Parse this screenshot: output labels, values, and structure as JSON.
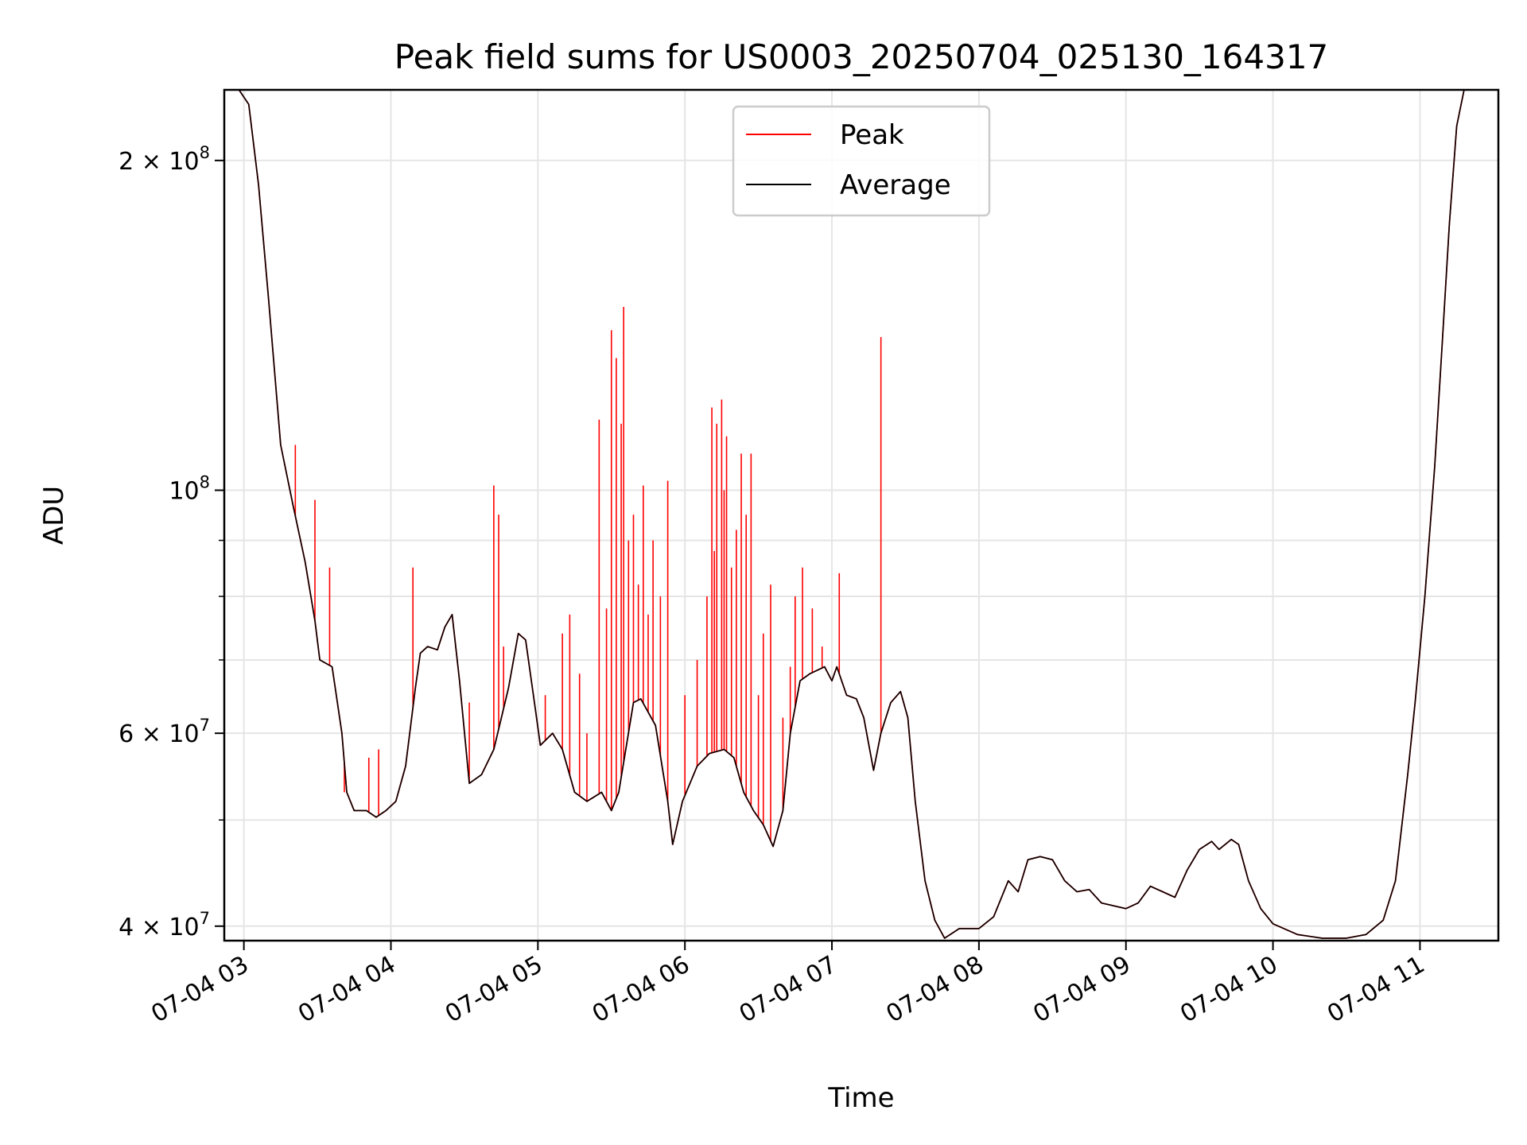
{
  "chart_data": {
    "type": "line",
    "title": "Peak field sums for US0003_20250704_025130_164317",
    "xlabel": "Time",
    "ylabel": "ADU",
    "y_scale": "log",
    "grid": true,
    "legend_position": "top-center",
    "xlim": [
      "2025-07-04T02:52",
      "2025-07-04T11:32"
    ],
    "ylim": [
      38800000,
      232000000
    ],
    "x_ticks": [
      {
        "t": "2025-07-04T03:00",
        "label": "07-04 03"
      },
      {
        "t": "2025-07-04T04:00",
        "label": "07-04 04"
      },
      {
        "t": "2025-07-04T05:00",
        "label": "07-04 05"
      },
      {
        "t": "2025-07-04T06:00",
        "label": "07-04 06"
      },
      {
        "t": "2025-07-04T07:00",
        "label": "07-04 07"
      },
      {
        "t": "2025-07-04T08:00",
        "label": "07-04 08"
      },
      {
        "t": "2025-07-04T09:00",
        "label": "07-04 09"
      },
      {
        "t": "2025-07-04T10:00",
        "label": "07-04 10"
      },
      {
        "t": "2025-07-04T11:00",
        "label": "07-04 11"
      }
    ],
    "y_major_ticks": [
      {
        "value": 40000000,
        "mantissa": "4",
        "exponent": "7"
      },
      {
        "value": 60000000,
        "mantissa": "6",
        "exponent": "7"
      },
      {
        "value": 100000000,
        "mantissa": "",
        "exponent": "8"
      },
      {
        "value": 200000000,
        "mantissa": "2",
        "exponent": "8"
      }
    ],
    "y_minor_ticks": [
      50000000,
      70000000,
      80000000,
      90000000
    ],
    "series": [
      {
        "name": "Peak",
        "color": "#ff0000",
        "spikes": [
          [
            "2025-07-04T03:21",
            110000000
          ],
          [
            "2025-07-04T03:29",
            98000000
          ],
          [
            "2025-07-04T03:35",
            85000000
          ],
          [
            "2025-07-04T03:41",
            53000000
          ],
          [
            "2025-07-04T03:51",
            57000000
          ],
          [
            "2025-07-04T03:55",
            58000000
          ],
          [
            "2025-07-04T04:09",
            85000000
          ],
          [
            "2025-07-04T04:32",
            64000000
          ],
          [
            "2025-07-04T04:42",
            101000000
          ],
          [
            "2025-07-04T04:44",
            95000000
          ],
          [
            "2025-07-04T04:46",
            72000000
          ],
          [
            "2025-07-04T05:03",
            65000000
          ],
          [
            "2025-07-04T05:10",
            74000000
          ],
          [
            "2025-07-04T05:13",
            77000000
          ],
          [
            "2025-07-04T05:17",
            68000000
          ],
          [
            "2025-07-04T05:20",
            60000000
          ],
          [
            "2025-07-04T05:25",
            116000000
          ],
          [
            "2025-07-04T05:28",
            78000000
          ],
          [
            "2025-07-04T05:30",
            140000000
          ],
          [
            "2025-07-04T05:32",
            132000000
          ],
          [
            "2025-07-04T05:34",
            115000000
          ],
          [
            "2025-07-04T05:35",
            147000000
          ],
          [
            "2025-07-04T05:37",
            90000000
          ],
          [
            "2025-07-04T05:39",
            95000000
          ],
          [
            "2025-07-04T05:41",
            82000000
          ],
          [
            "2025-07-04T05:43",
            101000000
          ],
          [
            "2025-07-04T05:45",
            77000000
          ],
          [
            "2025-07-04T05:47",
            90000000
          ],
          [
            "2025-07-04T05:50",
            80000000
          ],
          [
            "2025-07-04T05:53",
            102000000
          ],
          [
            "2025-07-04T06:00",
            65000000
          ],
          [
            "2025-07-04T06:05",
            70000000
          ],
          [
            "2025-07-04T06:09",
            80000000
          ],
          [
            "2025-07-04T06:11",
            119000000
          ],
          [
            "2025-07-04T06:12",
            88000000
          ],
          [
            "2025-07-04T06:13",
            115000000
          ],
          [
            "2025-07-04T06:15",
            121000000
          ],
          [
            "2025-07-04T06:16",
            100000000
          ],
          [
            "2025-07-04T06:17",
            112000000
          ],
          [
            "2025-07-04T06:19",
            85000000
          ],
          [
            "2025-07-04T06:21",
            92000000
          ],
          [
            "2025-07-04T06:23",
            108000000
          ],
          [
            "2025-07-04T06:25",
            95000000
          ],
          [
            "2025-07-04T06:27",
            108000000
          ],
          [
            "2025-07-04T06:30",
            65000000
          ],
          [
            "2025-07-04T06:32",
            74000000
          ],
          [
            "2025-07-04T06:35",
            82000000
          ],
          [
            "2025-07-04T06:40",
            62000000
          ],
          [
            "2025-07-04T06:43",
            69000000
          ],
          [
            "2025-07-04T06:45",
            80000000
          ],
          [
            "2025-07-04T06:48",
            85000000
          ],
          [
            "2025-07-04T06:52",
            78000000
          ],
          [
            "2025-07-04T06:56",
            72000000
          ],
          [
            "2025-07-04T07:03",
            84000000
          ],
          [
            "2025-07-04T07:20",
            138000000
          ]
        ]
      },
      {
        "name": "Average",
        "color": "#000000",
        "points": [
          [
            "2025-07-04T02:52",
            232000000
          ],
          [
            "2025-07-04T02:58",
            232000000
          ],
          [
            "2025-07-04T03:02",
            225000000
          ],
          [
            "2025-07-04T03:06",
            190000000
          ],
          [
            "2025-07-04T03:10",
            150000000
          ],
          [
            "2025-07-04T03:15",
            110000000
          ],
          [
            "2025-07-04T03:20",
            97000000
          ],
          [
            "2025-07-04T03:25",
            86000000
          ],
          [
            "2025-07-04T03:29",
            76000000
          ],
          [
            "2025-07-04T03:31",
            70000000
          ],
          [
            "2025-07-04T03:36",
            69000000
          ],
          [
            "2025-07-04T03:40",
            60000000
          ],
          [
            "2025-07-04T03:42",
            53000000
          ],
          [
            "2025-07-04T03:45",
            51000000
          ],
          [
            "2025-07-04T03:50",
            51000000
          ],
          [
            "2025-07-04T03:54",
            50300000
          ],
          [
            "2025-07-04T03:58",
            51000000
          ],
          [
            "2025-07-04T04:02",
            52000000
          ],
          [
            "2025-07-04T04:06",
            56000000
          ],
          [
            "2025-07-04T04:10",
            66000000
          ],
          [
            "2025-07-04T04:12",
            71000000
          ],
          [
            "2025-07-04T04:15",
            72000000
          ],
          [
            "2025-07-04T04:19",
            71500000
          ],
          [
            "2025-07-04T04:22",
            75000000
          ],
          [
            "2025-07-04T04:25",
            77000000
          ],
          [
            "2025-07-04T04:28",
            67000000
          ],
          [
            "2025-07-04T04:32",
            54000000
          ],
          [
            "2025-07-04T04:37",
            55000000
          ],
          [
            "2025-07-04T04:42",
            58000000
          ],
          [
            "2025-07-04T04:48",
            66000000
          ],
          [
            "2025-07-04T04:52",
            74000000
          ],
          [
            "2025-07-04T04:55",
            73000000
          ],
          [
            "2025-07-04T04:59",
            63000000
          ],
          [
            "2025-07-04T05:01",
            58500000
          ],
          [
            "2025-07-04T05:06",
            60000000
          ],
          [
            "2025-07-04T05:10",
            58000000
          ],
          [
            "2025-07-04T05:15",
            53000000
          ],
          [
            "2025-07-04T05:20",
            52000000
          ],
          [
            "2025-07-04T05:26",
            53000000
          ],
          [
            "2025-07-04T05:30",
            51000000
          ],
          [
            "2025-07-04T05:33",
            53000000
          ],
          [
            "2025-07-04T05:39",
            64000000
          ],
          [
            "2025-07-04T05:42",
            64500000
          ],
          [
            "2025-07-04T05:48",
            61000000
          ],
          [
            "2025-07-04T05:53",
            52000000
          ],
          [
            "2025-07-04T05:55",
            47500000
          ],
          [
            "2025-07-04T05:59",
            52000000
          ],
          [
            "2025-07-04T06:05",
            56000000
          ],
          [
            "2025-07-04T06:10",
            57500000
          ],
          [
            "2025-07-04T06:16",
            58000000
          ],
          [
            "2025-07-04T06:20",
            57000000
          ],
          [
            "2025-07-04T06:24",
            53000000
          ],
          [
            "2025-07-04T06:28",
            51000000
          ],
          [
            "2025-07-04T06:32",
            49500000
          ],
          [
            "2025-07-04T06:36",
            47300000
          ],
          [
            "2025-07-04T06:40",
            51000000
          ],
          [
            "2025-07-04T06:43",
            60000000
          ],
          [
            "2025-07-04T06:47",
            67000000
          ],
          [
            "2025-07-04T06:51",
            68000000
          ],
          [
            "2025-07-04T06:57",
            69000000
          ],
          [
            "2025-07-04T07:00",
            67000000
          ],
          [
            "2025-07-04T07:02",
            69000000
          ],
          [
            "2025-07-04T07:06",
            65000000
          ],
          [
            "2025-07-04T07:10",
            64500000
          ],
          [
            "2025-07-04T07:13",
            62000000
          ],
          [
            "2025-07-04T07:17",
            55500000
          ],
          [
            "2025-07-04T07:20",
            60000000
          ],
          [
            "2025-07-04T07:24",
            64000000
          ],
          [
            "2025-07-04T07:28",
            65500000
          ],
          [
            "2025-07-04T07:31",
            62000000
          ],
          [
            "2025-07-04T07:34",
            52000000
          ],
          [
            "2025-07-04T07:38",
            44000000
          ],
          [
            "2025-07-04T07:42",
            40500000
          ],
          [
            "2025-07-04T07:46",
            39000000
          ],
          [
            "2025-07-04T07:52",
            39800000
          ],
          [
            "2025-07-04T08:00",
            39800000
          ],
          [
            "2025-07-04T08:06",
            40800000
          ],
          [
            "2025-07-04T08:12",
            44000000
          ],
          [
            "2025-07-04T08:16",
            43000000
          ],
          [
            "2025-07-04T08:20",
            46000000
          ],
          [
            "2025-07-04T08:25",
            46300000
          ],
          [
            "2025-07-04T08:30",
            46000000
          ],
          [
            "2025-07-04T08:35",
            44000000
          ],
          [
            "2025-07-04T08:40",
            43000000
          ],
          [
            "2025-07-04T08:45",
            43200000
          ],
          [
            "2025-07-04T08:50",
            42000000
          ],
          [
            "2025-07-04T09:00",
            41500000
          ],
          [
            "2025-07-04T09:05",
            42000000
          ],
          [
            "2025-07-04T09:10",
            43500000
          ],
          [
            "2025-07-04T09:15",
            43000000
          ],
          [
            "2025-07-04T09:20",
            42500000
          ],
          [
            "2025-07-04T09:25",
            45000000
          ],
          [
            "2025-07-04T09:30",
            47000000
          ],
          [
            "2025-07-04T09:35",
            47800000
          ],
          [
            "2025-07-04T09:38",
            47000000
          ],
          [
            "2025-07-04T09:43",
            48000000
          ],
          [
            "2025-07-04T09:46",
            47500000
          ],
          [
            "2025-07-04T09:50",
            44000000
          ],
          [
            "2025-07-04T09:55",
            41500000
          ],
          [
            "2025-07-04T10:00",
            40200000
          ],
          [
            "2025-07-04T10:10",
            39300000
          ],
          [
            "2025-07-04T10:20",
            39000000
          ],
          [
            "2025-07-04T10:30",
            39000000
          ],
          [
            "2025-07-04T10:38",
            39300000
          ],
          [
            "2025-07-04T10:45",
            40500000
          ],
          [
            "2025-07-04T10:50",
            44000000
          ],
          [
            "2025-07-04T10:55",
            55000000
          ],
          [
            "2025-07-04T10:58",
            64000000
          ],
          [
            "2025-07-04T11:02",
            80000000
          ],
          [
            "2025-07-04T11:06",
            105000000
          ],
          [
            "2025-07-04T11:09",
            135000000
          ],
          [
            "2025-07-04T11:12",
            175000000
          ],
          [
            "2025-07-04T11:15",
            215000000
          ],
          [
            "2025-07-04T11:18",
            232000000
          ],
          [
            "2025-07-04T11:32",
            232000000
          ]
        ]
      }
    ]
  }
}
